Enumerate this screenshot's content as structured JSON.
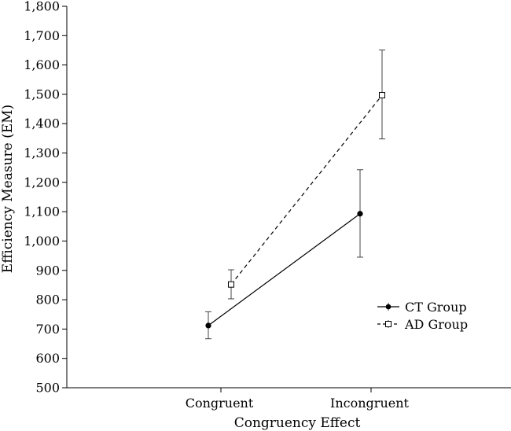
{
  "chart_data": {
    "type": "line",
    "title": "",
    "xlabel": "Congruency Effect",
    "ylabel": "Efficiency Measure (EM)",
    "categories": [
      "Congruent",
      "Incongruent"
    ],
    "ylim": [
      500,
      1800
    ],
    "yticks": [
      "500",
      "600",
      "700",
      "800",
      "900",
      "1,000",
      "1,100",
      "1,200",
      "1,300",
      "1,400",
      "1,500",
      "1,600",
      "1,700",
      "1,800"
    ],
    "ytick_values": [
      500,
      600,
      700,
      800,
      900,
      1000,
      1100,
      1200,
      1300,
      1400,
      1500,
      1600,
      1700,
      1800
    ],
    "grid": false,
    "legend_position": "right",
    "series": [
      {
        "name": "CT Group",
        "values": [
          712,
          1093
        ],
        "error_low": [
          667,
          945
        ],
        "error_high": [
          759,
          1243
        ],
        "line_style": "solid",
        "marker": "filled-circle",
        "color": "#000000"
      },
      {
        "name": "AD Group",
        "values": [
          852,
          1497
        ],
        "error_low": [
          803,
          1348
        ],
        "error_high": [
          902,
          1651
        ],
        "line_style": "dashed",
        "marker": "open-square",
        "color": "#000000"
      }
    ]
  }
}
